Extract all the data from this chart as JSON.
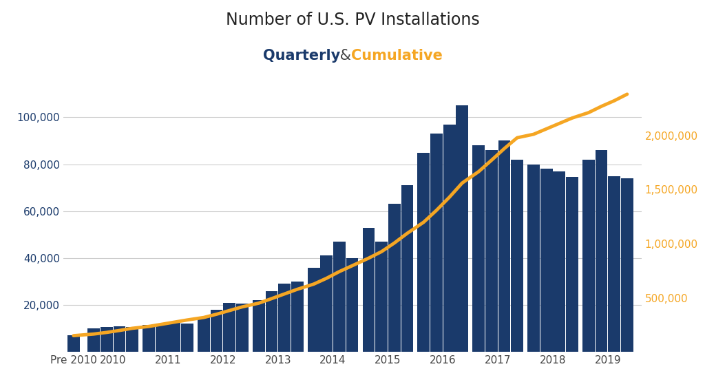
{
  "title_line1": "Number of U.S. PV Installations",
  "title_line2_quarterly": "Quarterly",
  "title_line2_and": " & ",
  "title_line2_cumulative": "Cumulative",
  "title_color": "#222222",
  "quarterly_color": "#1a3a6b",
  "cumulative_color": "#f5a623",
  "bar_color": "#1a3a6b",
  "background_color": "#ffffff",
  "left_axis_color": "#1a3a6b",
  "right_axis_color": "#f5a623",
  "bar_values": [
    7000,
    10000,
    10500,
    11000,
    10500,
    11500,
    12000,
    12500,
    12000,
    15000,
    18000,
    21000,
    20500,
    22000,
    26000,
    29000,
    30000,
    36000,
    41000,
    47000,
    40000,
    53000,
    47000,
    63000,
    71000,
    85000,
    93000,
    97000,
    105000,
    88000,
    86000,
    90000,
    82000,
    80000,
    78000,
    77000,
    74500,
    82000,
    86000,
    75000,
    74000
  ],
  "cumulative_values": [
    150000,
    165000,
    180000,
    198000,
    218000,
    235000,
    255000,
    275000,
    295000,
    318000,
    348000,
    382000,
    416000,
    450000,
    492000,
    535000,
    578000,
    626000,
    680000,
    742000,
    796000,
    866000,
    926000,
    1006000,
    1095000,
    1198000,
    1308000,
    1428000,
    1560000,
    1665000,
    1770000,
    1878000,
    1978000,
    2010000,
    2060000,
    2110000,
    2160000,
    2210000,
    2268000,
    2320000,
    2380000
  ],
  "x_year_labels": [
    "Pre 2010",
    "2010",
    "2011",
    "2012",
    "2013",
    "2014",
    "2015",
    "2016",
    "2017",
    "2018",
    "2019"
  ],
  "yleft_max": 120000,
  "yright_max": 2600000,
  "yleft_ticks": [
    20000,
    40000,
    60000,
    80000,
    100000
  ],
  "yright_ticks": [
    500000,
    1000000,
    1500000,
    2000000
  ],
  "grid_color": "#cccccc",
  "title_fontsize": 17,
  "subtitle_fontsize": 15,
  "tick_fontsize": 11
}
